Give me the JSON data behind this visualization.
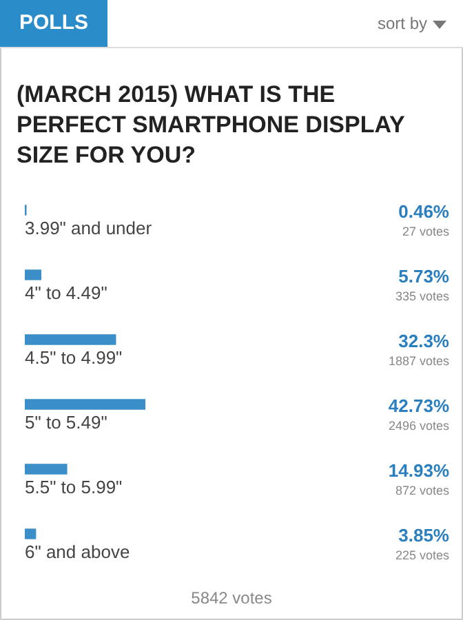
{
  "chart_data": {
    "type": "bar",
    "orientation": "horizontal",
    "title": "(MARCH 2015) WHAT IS THE PERFECT SMARTPHONE DISPLAY SIZE FOR YOU?",
    "categories": [
      "3.99\" and under",
      "4\" to 4.49\"",
      "4.5\" to 4.99\"",
      "5\" to 5.49\"",
      "5.5\" to 5.99\"",
      "6\" and above"
    ],
    "values": [
      0.46,
      5.73,
      32.3,
      42.73,
      14.93,
      3.85
    ],
    "value_labels": [
      "0.46%",
      "5.73%",
      "32.3%",
      "42.73%",
      "14.93%",
      "3.85%"
    ],
    "color": "#3a8fc8",
    "tick_labels": false,
    "annotations": [
      "POLLS",
      "sort by",
      "27 votes",
      "335 votes",
      "1887 votes",
      "2496 votes",
      "872 votes",
      "225 votes",
      "5842 votes"
    ]
  }
}
